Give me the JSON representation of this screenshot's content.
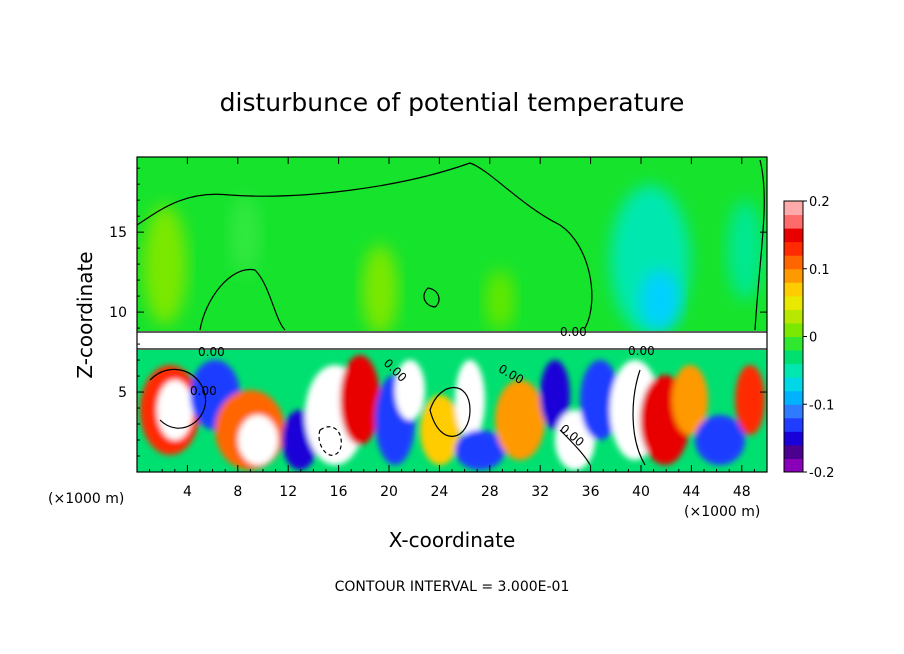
{
  "chart_data": {
    "type": "heatmap",
    "title": "disturbunce of potential temperature",
    "xlabel": "X-coordinate",
    "ylabel": "Z-coordinate",
    "x_unit": "(×1000 m)",
    "x_unit_right": "(×1000 m)",
    "x_ticks": [
      4,
      8,
      12,
      16,
      20,
      24,
      28,
      32,
      36,
      40,
      44,
      48
    ],
    "y_ticks": [
      5,
      10,
      15
    ],
    "xlim": [
      0,
      50
    ],
    "ylim": [
      0,
      19.7
    ],
    "colorbar": {
      "ticks": [
        "0.2",
        "0.1",
        "0",
        "-0.1",
        "-0.2"
      ],
      "tick_values": [
        0.2,
        0.1,
        0,
        -0.1,
        -0.2
      ],
      "range": [
        -0.2,
        0.2
      ],
      "colors": [
        "#8a00b8",
        "#4b0090",
        "#1a00d8",
        "#1f3cff",
        "#2f7bff",
        "#00b2ff",
        "#00d8e8",
        "#00e8b0",
        "#00e070",
        "#2fe82f",
        "#7ae800",
        "#b8e800",
        "#e8e800",
        "#ffcc00",
        "#ff9900",
        "#ff6600",
        "#ff2a00",
        "#e80000",
        "#ff6a6a",
        "#ffaaaa"
      ]
    },
    "contour_labels": [
      "0.00",
      "0.00",
      "0.00",
      "0.00",
      "0.00",
      "0.00",
      "0.00"
    ],
    "footer": "CONTOUR INTERVAL = 3.000E-01"
  }
}
